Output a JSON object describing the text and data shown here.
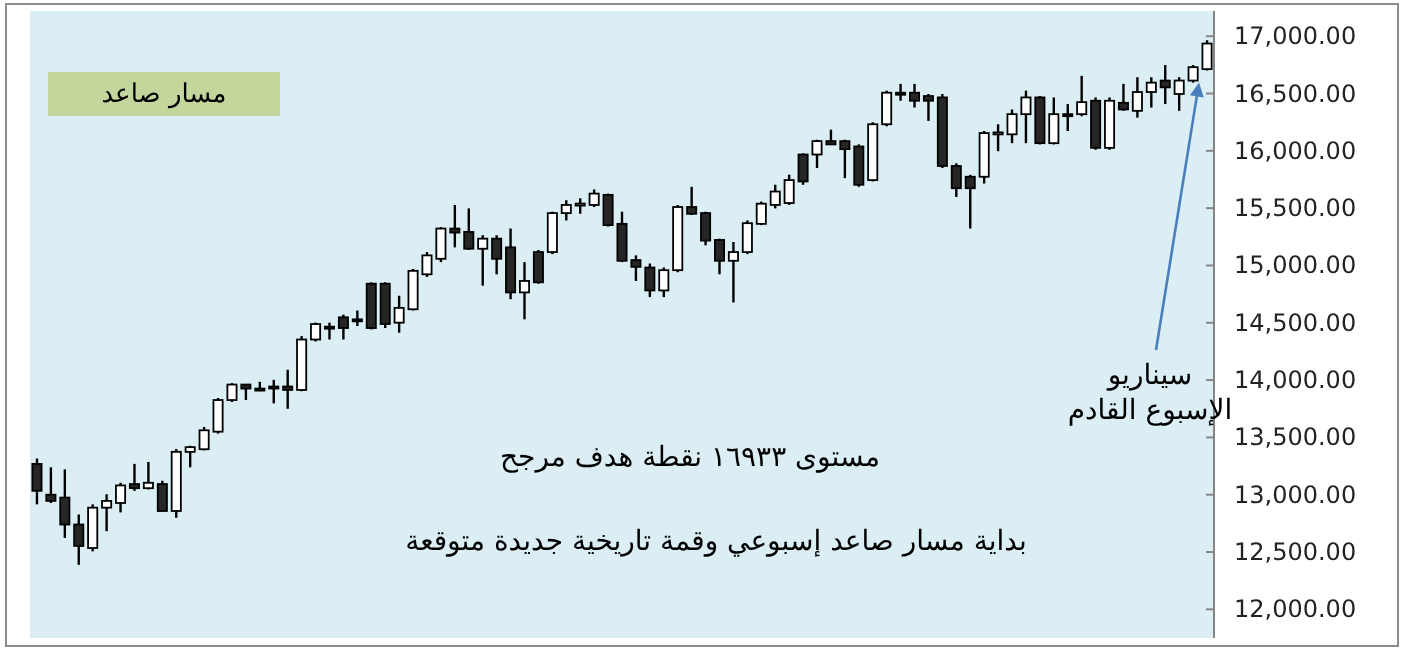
{
  "chart_data": {
    "type": "candlestick",
    "categories": [
      null,
      null,
      null,
      null,
      null,
      null,
      null,
      null,
      null,
      null,
      null,
      null,
      null,
      null,
      null,
      null,
      null,
      null,
      null,
      null,
      null,
      null,
      null,
      null,
      null,
      null,
      null,
      null,
      null,
      null,
      null,
      null,
      null,
      null,
      null,
      null,
      null,
      null,
      null,
      null,
      null,
      null,
      null,
      null,
      null,
      null,
      null,
      null,
      null,
      null,
      null,
      null,
      null,
      null,
      null,
      null,
      null,
      null,
      null,
      null,
      null,
      null,
      null,
      null,
      null,
      null,
      null,
      null,
      null,
      null,
      null,
      null,
      null,
      null,
      null,
      null,
      null,
      null,
      null,
      null,
      null,
      null,
      null,
      null,
      null
    ],
    "ohlc": [
      [
        13269,
        13316,
        12916,
        13034
      ],
      [
        13000,
        13239,
        12928,
        12946
      ],
      [
        12975,
        13221,
        12623,
        12740
      ],
      [
        12740,
        12828,
        12388,
        12553
      ],
      [
        12535,
        12916,
        12506,
        12887
      ],
      [
        12887,
        13004,
        12682,
        12946
      ],
      [
        12928,
        13104,
        12846,
        13081
      ],
      [
        13093,
        13269,
        13034,
        13057
      ],
      [
        13057,
        13286,
        13046,
        13104
      ],
      [
        13093,
        13122,
        12858,
        12858
      ],
      [
        12858,
        13398,
        12799,
        13374
      ],
      [
        13374,
        13427,
        13239,
        13415
      ],
      [
        13397,
        13591,
        13386,
        13562
      ],
      [
        13550,
        13844,
        13533,
        13826
      ],
      [
        13826,
        13973,
        13809,
        13961
      ],
      [
        13961,
        13966,
        13826,
        13926
      ],
      [
        13926,
        13985,
        13903,
        13914
      ],
      [
        13944,
        14002,
        13797,
        13938
      ],
      [
        13944,
        14090,
        13750,
        13914
      ],
      [
        13914,
        14384,
        13903,
        14354
      ],
      [
        14354,
        14501,
        14337,
        14489
      ],
      [
        14466,
        14501,
        14354,
        14454
      ],
      [
        14548,
        14571,
        14354,
        14454
      ],
      [
        14530,
        14607,
        14472,
        14524
      ],
      [
        14841,
        14853,
        14442,
        14454
      ],
      [
        14841,
        14853,
        14454,
        14489
      ],
      [
        14501,
        14736,
        14413,
        14630
      ],
      [
        14618,
        14970,
        14607,
        14953
      ],
      [
        14923,
        15117,
        14900,
        15088
      ],
      [
        15058,
        15334,
        15029,
        15322
      ],
      [
        15322,
        15528,
        15158,
        15287
      ],
      [
        15293,
        15498,
        15135,
        15146
      ],
      [
        15146,
        15264,
        14824,
        15234
      ],
      [
        15234,
        15264,
        14923,
        15058
      ],
      [
        15158,
        15322,
        14706,
        14765
      ],
      [
        14765,
        15029,
        14530,
        14865
      ],
      [
        15117,
        15135,
        14841,
        14853
      ],
      [
        15117,
        15469,
        15099,
        15457
      ],
      [
        15457,
        15569,
        15393,
        15528
      ],
      [
        15534,
        15586,
        15451,
        15540
      ],
      [
        15528,
        15663,
        15510,
        15627
      ],
      [
        15616,
        15627,
        15340,
        15352
      ],
      [
        15363,
        15469,
        15029,
        15041
      ],
      [
        15047,
        15088,
        14865,
        14988
      ],
      [
        14982,
        15017,
        14724,
        14782
      ],
      [
        14782,
        14982,
        14724,
        14959
      ],
      [
        14959,
        15528,
        14941,
        15510
      ],
      [
        15510,
        15686,
        15440,
        15451
      ],
      [
        15457,
        15469,
        15176,
        15217
      ],
      [
        15223,
        15234,
        14923,
        15041
      ],
      [
        15041,
        15205,
        14677,
        15117
      ],
      [
        15117,
        15393,
        15099,
        15369
      ],
      [
        15363,
        15557,
        15352,
        15539
      ],
      [
        15528,
        15704,
        15498,
        15645
      ],
      [
        15545,
        15792,
        15528,
        15745
      ],
      [
        15968,
        15979,
        15704,
        15733
      ],
      [
        15968,
        16097,
        15850,
        16085
      ],
      [
        16085,
        16185,
        16056,
        16056
      ],
      [
        16085,
        16097,
        15762,
        16015
      ],
      [
        16038,
        16056,
        15686,
        15704
      ],
      [
        15745,
        16249,
        15733,
        16232
      ],
      [
        16232,
        16525,
        16214,
        16507
      ],
      [
        16507,
        16584,
        16437,
        16501
      ],
      [
        16507,
        16584,
        16378,
        16437
      ],
      [
        16478,
        16496,
        16261,
        16437
      ],
      [
        16466,
        16496,
        15850,
        15868
      ],
      [
        15868,
        15891,
        15598,
        15674
      ],
      [
        15774,
        15791,
        15322,
        15674
      ],
      [
        15774,
        16173,
        15715,
        16155
      ],
      [
        16155,
        16232,
        15997,
        16161
      ],
      [
        16144,
        16361,
        16067,
        16320
      ],
      [
        16320,
        16525,
        16067,
        16466
      ],
      [
        16466,
        16478,
        16056,
        16067
      ],
      [
        16067,
        16466,
        16056,
        16320
      ],
      [
        16320,
        16408,
        16173,
        16314
      ],
      [
        16320,
        16654,
        16302,
        16425
      ],
      [
        16437,
        16466,
        16009,
        16026
      ],
      [
        16026,
        16466,
        16009,
        16437
      ],
      [
        16419,
        16584,
        16349,
        16361
      ],
      [
        16349,
        16642,
        16290,
        16513
      ],
      [
        16513,
        16642,
        16378,
        16595
      ],
      [
        16613,
        16748,
        16408,
        16554
      ],
      [
        16496,
        16642,
        16349,
        16613
      ],
      [
        16613,
        16748,
        16595,
        16730
      ],
      [
        16713,
        16965,
        16701,
        16936
      ]
    ],
    "ylim": [
      11750,
      17220
    ],
    "yticks": [
      {
        "value": 12000,
        "label": "12,000.00"
      },
      {
        "value": 12500,
        "label": "12,500.00"
      },
      {
        "value": 13000,
        "label": "13,000.00"
      },
      {
        "value": 13500,
        "label": "13,500.00"
      },
      {
        "value": 14000,
        "label": "14,000.00"
      },
      {
        "value": 14500,
        "label": "14,500.00"
      },
      {
        "value": 15000,
        "label": "15,000.00"
      },
      {
        "value": 15500,
        "label": "15,500.00"
      },
      {
        "value": 16000,
        "label": "16,000.00"
      },
      {
        "value": 16500,
        "label": "16,500.00"
      },
      {
        "value": 17000,
        "label": "17,000.00"
      }
    ],
    "tick_labels": "y",
    "grid": false,
    "annotations": [
      "مسار صاعد",
      "سيناريو\nالإسبوع القادم",
      "مستوى ١٦٩٣٣ نقطة هدف مرجح",
      "بداية مسار صاعد إسبوعي وقمة تاريخية جديدة متوقعة"
    ]
  }
}
